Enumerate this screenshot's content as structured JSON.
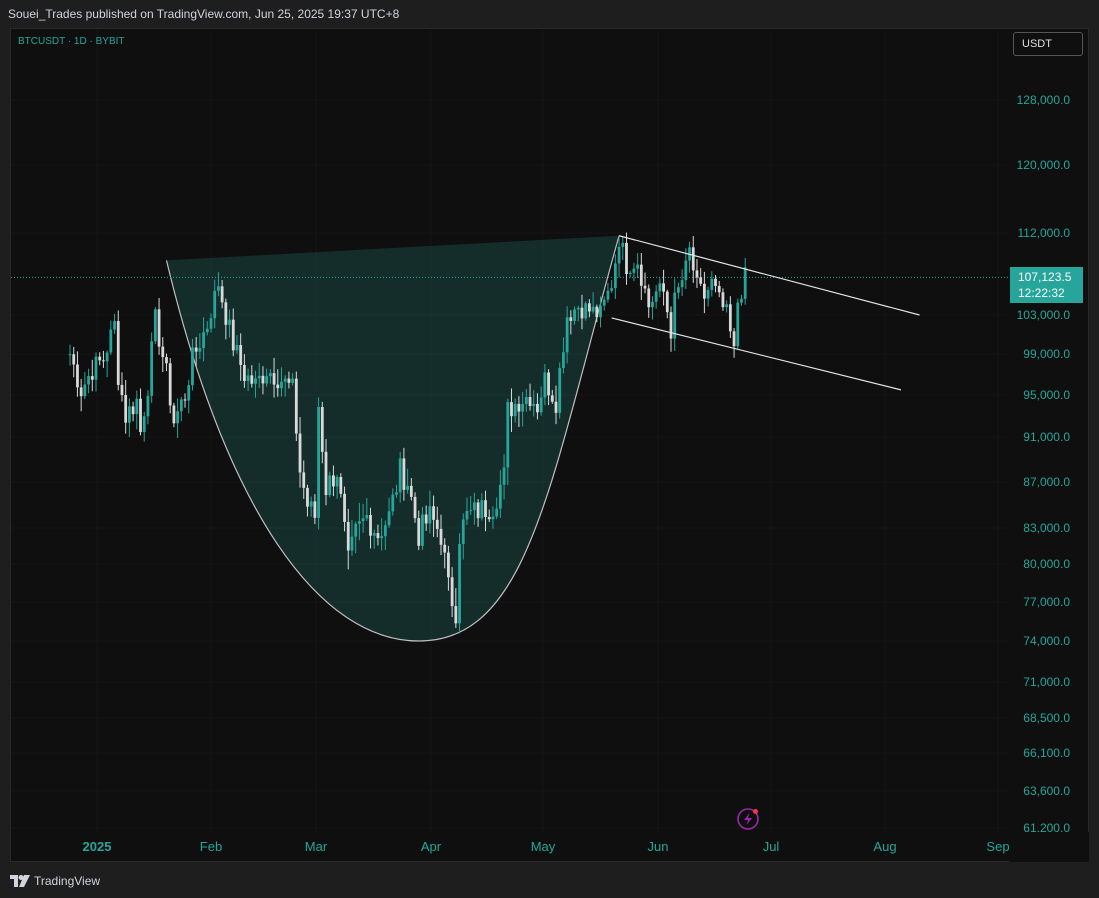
{
  "header": {
    "published_text": "Souei_Trades published on TradingView.com, Jun 25, 2025 19:37 UTC+8"
  },
  "symbol_label": "BTCUSDT · 1D · BYBIT",
  "currency_button": "USDT",
  "price_tag": {
    "price": "107,123.5",
    "countdown": "12:22:32"
  },
  "footer": {
    "brand": "TradingView"
  },
  "colors": {
    "up": "#26a69a",
    "down": "#d9d9d9",
    "pattern_fill": "#26a69a",
    "channel_line": "#e6e6e6",
    "background": "#0f0f0f"
  },
  "icons": {
    "logo": "tradingview-logo-icon",
    "flash": "lightning-icon"
  },
  "chart_data": {
    "type": "candlestick",
    "symbol": "BTCUSDT",
    "interval": "1D",
    "exchange": "BYBIT",
    "y_ticks": [
      128000,
      120000,
      112000,
      103000,
      99000,
      95000,
      91000,
      87000,
      83000,
      80000,
      77000,
      74000,
      71000,
      68500,
      66100,
      63600,
      61200
    ],
    "y_tick_labels": [
      "128,000.0",
      "120,000.0",
      "112,000.0",
      "103,000.0",
      "99,000.0",
      "95,000.0",
      "91,000.0",
      "87,000.0",
      "83,000.0",
      "80,000.0",
      "77,000.0",
      "74,000.0",
      "71,000.0",
      "68,500.0",
      "66,100.0",
      "63,600.0",
      "61,200.0"
    ],
    "x_labels": [
      "2025",
      "Feb",
      "Mar",
      "Apr",
      "May",
      "Jun",
      "Jul",
      "Aug",
      "Sep"
    ],
    "last_price": 107123.5,
    "close_series": [
      {
        "x": "2024-12-25",
        "close": 99000
      },
      {
        "x": "2024-12-28",
        "close": 95500
      },
      {
        "x": "2024-12-31",
        "close": 97500
      },
      {
        "x": "2025-01-03",
        "close": 98500
      },
      {
        "x": "2025-01-06",
        "close": 102000
      },
      {
        "x": "2025-01-07",
        "close": 97000
      },
      {
        "x": "2025-01-09",
        "close": 93000
      },
      {
        "x": "2025-01-12",
        "close": 94500
      },
      {
        "x": "2025-01-13",
        "close": 91500
      },
      {
        "x": "2025-01-15",
        "close": 96000
      },
      {
        "x": "2025-01-17",
        "close": 102500
      },
      {
        "x": "2025-01-20",
        "close": 97000
      },
      {
        "x": "2025-01-22",
        "close": 92500
      },
      {
        "x": "2025-01-25",
        "close": 95000
      },
      {
        "x": "2025-01-27",
        "close": 98500
      },
      {
        "x": "2025-01-31",
        "close": 102000
      },
      {
        "x": "2025-02-03",
        "close": 106500
      },
      {
        "x": "2025-02-05",
        "close": 103000
      },
      {
        "x": "2025-02-07",
        "close": 100000
      },
      {
        "x": "2025-02-10",
        "close": 97000
      },
      {
        "x": "2025-02-13",
        "close": 96000
      },
      {
        "x": "2025-02-16",
        "close": 97500
      },
      {
        "x": "2025-02-20",
        "close": 96500
      },
      {
        "x": "2025-02-23",
        "close": 95500
      },
      {
        "x": "2025-02-25",
        "close": 88000
      },
      {
        "x": "2025-02-27",
        "close": 85000
      },
      {
        "x": "2025-03-01",
        "close": 84000
      },
      {
        "x": "2025-03-02",
        "close": 94000
      },
      {
        "x": "2025-03-04",
        "close": 86500
      },
      {
        "x": "2025-03-07",
        "close": 88000
      },
      {
        "x": "2025-03-10",
        "close": 80000
      },
      {
        "x": "2025-03-12",
        "close": 82500
      },
      {
        "x": "2025-03-15",
        "close": 84000
      },
      {
        "x": "2025-03-18",
        "close": 82500
      },
      {
        "x": "2025-03-21",
        "close": 84000
      },
      {
        "x": "2025-03-24",
        "close": 88000
      },
      {
        "x": "2025-03-26",
        "close": 87000
      },
      {
        "x": "2025-03-29",
        "close": 82500
      },
      {
        "x": "2025-04-01",
        "close": 84000
      },
      {
        "x": "2025-04-04",
        "close": 82500
      },
      {
        "x": "2025-04-06",
        "close": 78000
      },
      {
        "x": "2025-04-08",
        "close": 76500
      },
      {
        "x": "2025-04-09",
        "close": 82500
      },
      {
        "x": "2025-04-11",
        "close": 84000
      },
      {
        "x": "2025-04-14",
        "close": 84500
      },
      {
        "x": "2025-04-18",
        "close": 85000
      },
      {
        "x": "2025-04-21",
        "close": 87500
      },
      {
        "x": "2025-04-22",
        "close": 93500
      },
      {
        "x": "2025-04-25",
        "close": 94500
      },
      {
        "x": "2025-04-28",
        "close": 95000
      },
      {
        "x": "2025-04-30",
        "close": 94000
      },
      {
        "x": "2025-05-02",
        "close": 96500
      },
      {
        "x": "2025-05-05",
        "close": 94500
      },
      {
        "x": "2025-05-08",
        "close": 103000
      },
      {
        "x": "2025-05-11",
        "close": 104000
      },
      {
        "x": "2025-05-14",
        "close": 103500
      },
      {
        "x": "2025-05-17",
        "close": 103000
      },
      {
        "x": "2025-05-20",
        "close": 106500
      },
      {
        "x": "2025-05-22",
        "close": 111500
      },
      {
        "x": "2025-05-24",
        "close": 108500
      },
      {
        "x": "2025-05-27",
        "close": 109000
      },
      {
        "x": "2025-05-30",
        "close": 104000
      },
      {
        "x": "2025-06-01",
        "close": 105500
      },
      {
        "x": "2025-06-03",
        "close": 105500
      },
      {
        "x": "2025-06-05",
        "close": 101500
      },
      {
        "x": "2025-06-06",
        "close": 104500
      },
      {
        "x": "2025-06-09",
        "close": 108000
      },
      {
        "x": "2025-06-10",
        "close": 110000
      },
      {
        "x": "2025-06-12",
        "close": 106000
      },
      {
        "x": "2025-06-14",
        "close": 105000
      },
      {
        "x": "2025-06-16",
        "close": 106500
      },
      {
        "x": "2025-06-18",
        "close": 104500
      },
      {
        "x": "2025-06-20",
        "close": 103000
      },
      {
        "x": "2025-06-22",
        "close": 99000
      },
      {
        "x": "2025-06-23",
        "close": 104500
      },
      {
        "x": "2025-06-25",
        "close": 107100
      }
    ],
    "drawings": {
      "cup_pattern": {
        "rim_left": [
          "2025-01-20",
          109000
        ],
        "rim_right": [
          "2025-05-22",
          111700
        ],
        "bottom": [
          "2025-03-29",
          74000
        ]
      },
      "channel_upper": [
        [
          "2025-05-22",
          111700
        ],
        [
          "2025-08-11",
          103000
        ]
      ],
      "channel_lower": [
        [
          "2025-05-20",
          102700
        ],
        [
          "2025-08-06",
          95500
        ]
      ]
    }
  }
}
